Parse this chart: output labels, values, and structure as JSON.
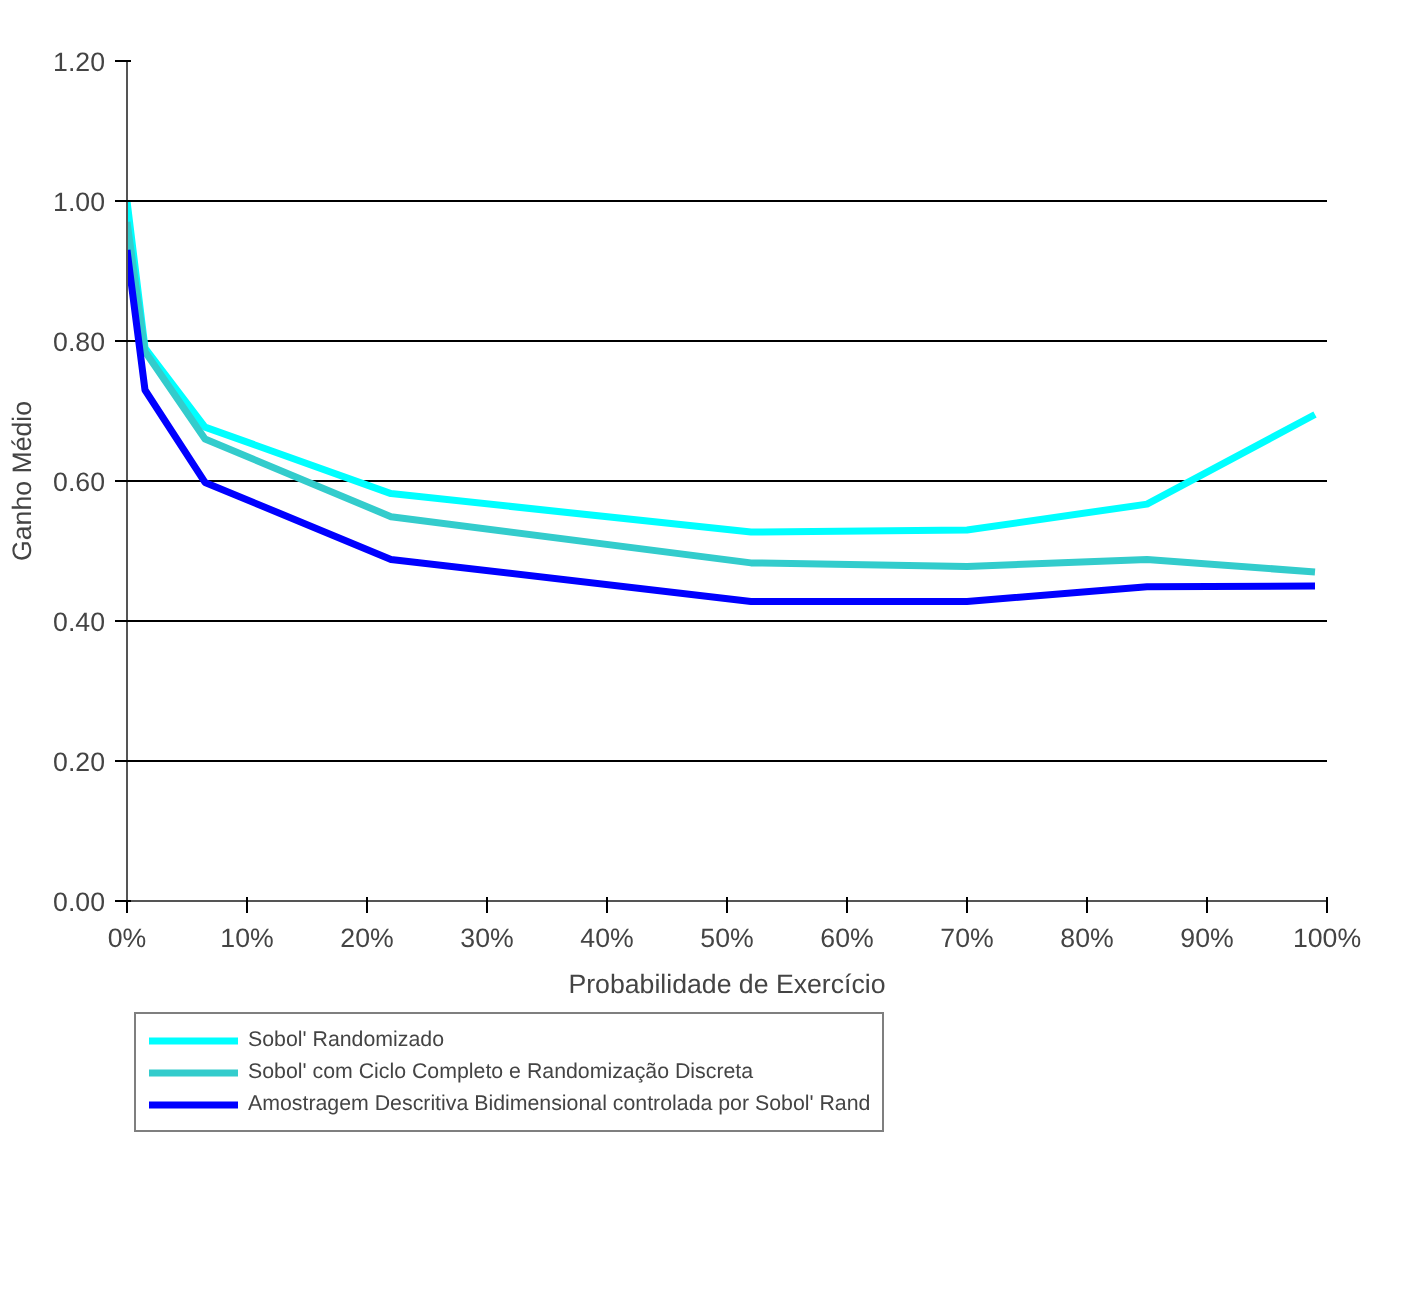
{
  "chart_data": {
    "type": "line",
    "xlabel": "Probabilidade de Exercício",
    "ylabel": "Ganho Médio",
    "x": [
      0,
      1.5,
      6.5,
      22,
      52,
      70,
      85,
      99
    ],
    "series": [
      {
        "name": "Sobol' Randomizado",
        "color": "#00ffff",
        "values": [
          1.0,
          0.79,
          0.677,
          0.582,
          0.527,
          0.53,
          0.567,
          0.695
        ]
      },
      {
        "name": "Sobol' com Ciclo Completo e Randomização Discreta",
        "color": "#33cccc",
        "values": [
          0.97,
          0.785,
          0.66,
          0.549,
          0.483,
          0.478,
          0.488,
          0.47
        ]
      },
      {
        "name": "Amostragem Descritiva Bidimensional controlada por Sobol' Rand",
        "color": "#0000ff",
        "values": [
          0.93,
          0.73,
          0.598,
          0.488,
          0.428,
          0.428,
          0.449,
          0.45
        ]
      }
    ],
    "xlim": [
      0,
      100
    ],
    "xticks": [
      {
        "value": 0,
        "label": "0%"
      },
      {
        "value": 10,
        "label": "10%"
      },
      {
        "value": 20,
        "label": "20%"
      },
      {
        "value": 30,
        "label": "30%"
      },
      {
        "value": 40,
        "label": "40%"
      },
      {
        "value": 50,
        "label": "50%"
      },
      {
        "value": 60,
        "label": "60%"
      },
      {
        "value": 70,
        "label": "70%"
      },
      {
        "value": 80,
        "label": "80%"
      },
      {
        "value": 90,
        "label": "90%"
      },
      {
        "value": 100,
        "label": "100%"
      }
    ],
    "ylim": [
      0,
      1.2
    ],
    "yticks": [
      {
        "value": 0,
        "label": "0.00"
      },
      {
        "value": 0.2,
        "label": "0.20"
      },
      {
        "value": 0.4,
        "label": "0.40"
      },
      {
        "value": 0.6,
        "label": "0.60"
      },
      {
        "value": 0.8,
        "label": "0.80"
      },
      {
        "value": 1.0,
        "label": "1.00"
      },
      {
        "value": 1.2,
        "label": "1.20"
      }
    ],
    "grid": "y",
    "legend": "bottom",
    "marker": "none",
    "line_style": "solid"
  }
}
